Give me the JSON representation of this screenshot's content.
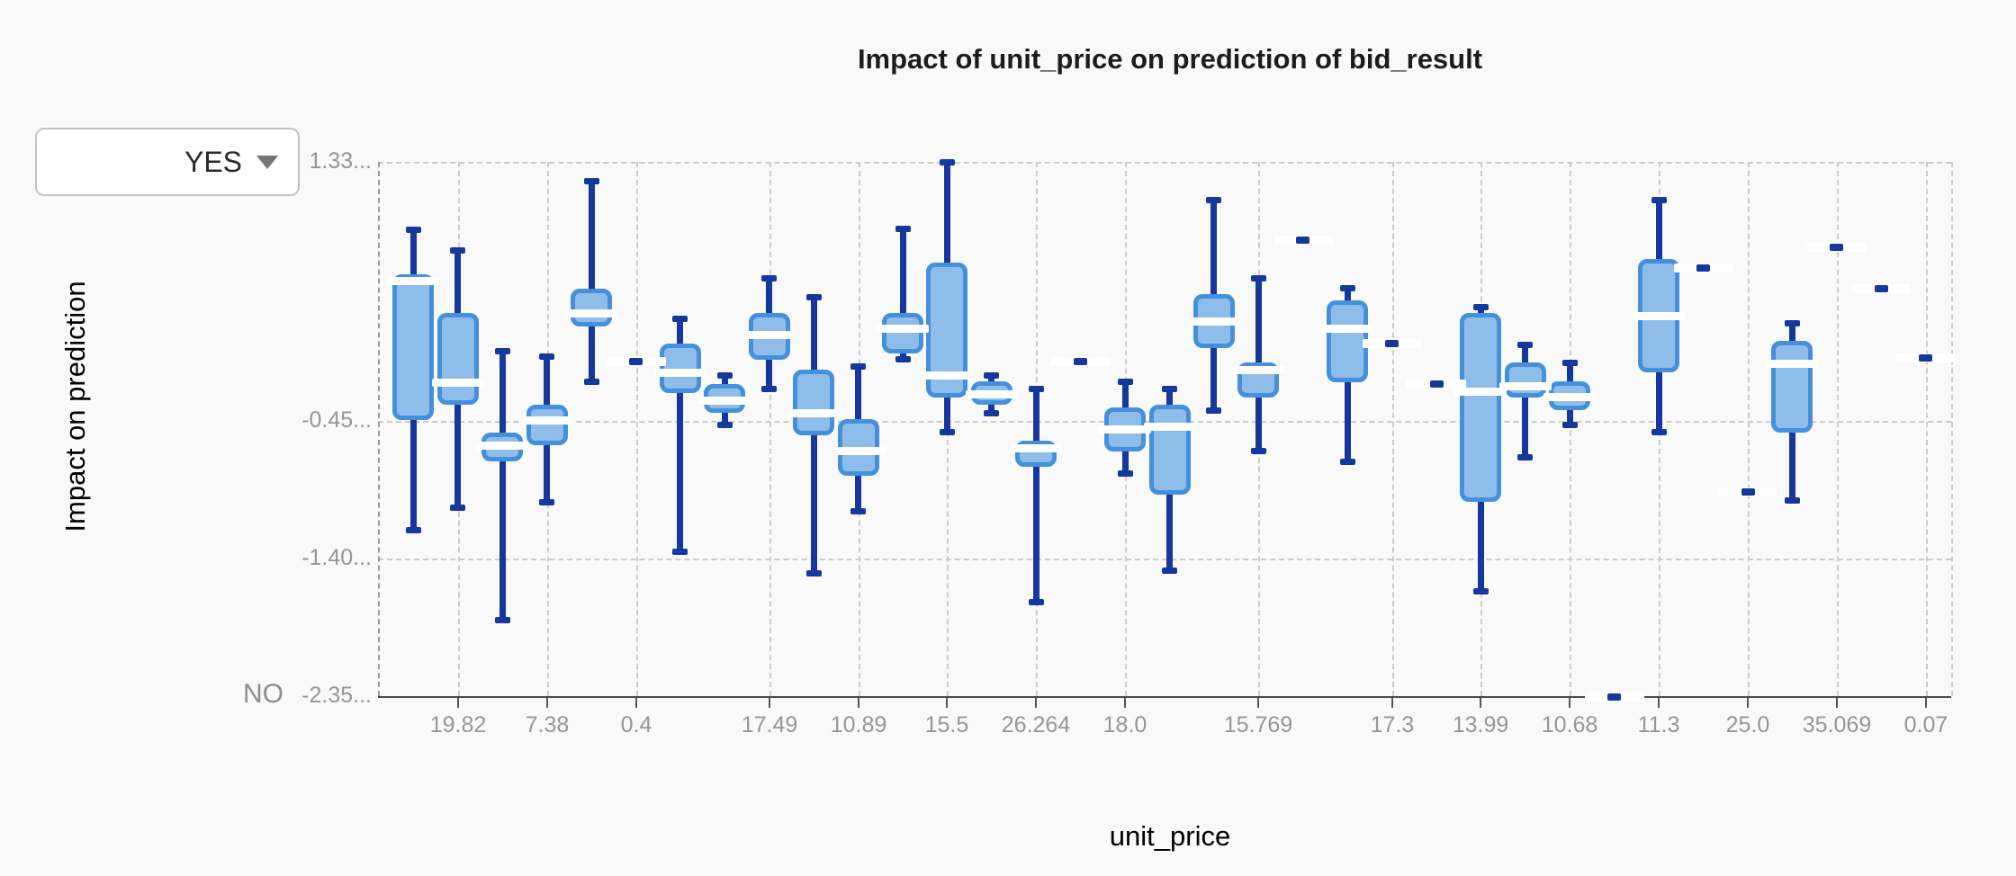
{
  "title": "Impact of unit_price on prediction of bid_result",
  "class_selector": {
    "selected_label": "YES",
    "bottom_class_label": "NO"
  },
  "y_axis": {
    "label": "Impact on prediction",
    "ticks": [
      {
        "label": "1.33...",
        "value": 1.33
      },
      {
        "label": "-0.45...",
        "value": -0.45
      },
      {
        "label": "-1.40...",
        "value": -1.4
      },
      {
        "label": "-2.35...",
        "value": -2.35
      }
    ]
  },
  "x_axis": {
    "label": "unit_price"
  },
  "colors": {
    "background": "#f9f9fa",
    "box_fill": "#8fbde9",
    "box_border": "#4590dd",
    "whisker": "#14389c",
    "median": "#ffffff",
    "grid": "#cbcbcb",
    "axis": "#4a4a4a",
    "tick_text": "#969696"
  },
  "chart_data": {
    "type": "box",
    "title": "Impact of unit_price on prediction of bid_result",
    "xlabel": "unit_price",
    "ylabel": "Impact on prediction",
    "ylim": [
      -2.35,
      1.33
    ],
    "grid": true,
    "y_tick_values": [
      1.33,
      -0.45,
      -1.4,
      -2.35
    ],
    "items": [
      {
        "kind": "box",
        "stats": {
          "lo": -1.2,
          "q1": -0.44,
          "med": 0.51,
          "q3": 0.56,
          "hi": 0.86
        }
      },
      {
        "label": "19.82",
        "kind": "box",
        "stats": {
          "lo": -1.05,
          "q1": -0.34,
          "med": -0.19,
          "q3": 0.29,
          "hi": 0.72
        }
      },
      {
        "kind": "box",
        "stats": {
          "lo": -1.82,
          "q1": -0.73,
          "med": -0.62,
          "q3": -0.53,
          "hi": 0.03
        }
      },
      {
        "label": "7.38",
        "kind": "box",
        "stats": {
          "lo": -1.01,
          "q1": -0.62,
          "med": -0.45,
          "q3": -0.34,
          "hi": -0.01
        }
      },
      {
        "kind": "box",
        "stats": {
          "lo": -0.18,
          "q1": 0.2,
          "med": 0.29,
          "q3": 0.46,
          "hi": 1.2
        }
      },
      {
        "label": "0.4",
        "kind": "dash",
        "value": -0.04
      },
      {
        "kind": "box",
        "stats": {
          "lo": -1.35,
          "q1": -0.26,
          "med": -0.12,
          "q3": 0.08,
          "hi": 0.25
        }
      },
      {
        "kind": "box",
        "stats": {
          "lo": -0.48,
          "q1": -0.4,
          "med": -0.31,
          "q3": -0.2,
          "hi": -0.14
        }
      },
      {
        "label": "17.49",
        "kind": "box",
        "stats": {
          "lo": -0.23,
          "q1": -0.03,
          "med": 0.14,
          "q3": 0.29,
          "hi": 0.53
        }
      },
      {
        "kind": "box",
        "stats": {
          "lo": -1.5,
          "q1": -0.55,
          "med": -0.4,
          "q3": -0.1,
          "hi": 0.4
        }
      },
      {
        "label": "10.89",
        "kind": "box",
        "stats": {
          "lo": -1.07,
          "q1": -0.83,
          "med": -0.66,
          "q3": -0.44,
          "hi": -0.08
        }
      },
      {
        "kind": "box",
        "stats": {
          "lo": -0.03,
          "q1": 0.01,
          "med": 0.18,
          "q3": 0.29,
          "hi": 0.87
        }
      },
      {
        "label": "15.5",
        "kind": "box",
        "stats": {
          "lo": -0.53,
          "q1": -0.29,
          "med": -0.14,
          "q3": 0.64,
          "hi": 1.33
        }
      },
      {
        "kind": "box",
        "stats": {
          "lo": -0.4,
          "q1": -0.34,
          "med": -0.27,
          "q3": -0.18,
          "hi": -0.14
        }
      },
      {
        "label": "26.264",
        "kind": "box",
        "stats": {
          "lo": -1.7,
          "q1": -0.77,
          "med": -0.64,
          "q3": -0.59,
          "hi": -0.23
        }
      },
      {
        "kind": "dash",
        "value": -0.04
      },
      {
        "label": "18.0",
        "kind": "box",
        "stats": {
          "lo": -0.81,
          "q1": -0.66,
          "med": -0.51,
          "q3": -0.36,
          "hi": -0.18
        }
      },
      {
        "kind": "box",
        "stats": {
          "lo": -1.48,
          "q1": -0.96,
          "med": -0.49,
          "q3": -0.34,
          "hi": -0.23
        }
      },
      {
        "kind": "box",
        "stats": {
          "lo": -0.38,
          "q1": 0.05,
          "med": 0.23,
          "q3": 0.42,
          "hi": 1.07
        }
      },
      {
        "label": "15.769",
        "kind": "box",
        "stats": {
          "lo": -0.66,
          "q1": -0.29,
          "med": -0.1,
          "q3": -0.05,
          "hi": 0.53
        }
      },
      {
        "kind": "dash",
        "value": 0.79
      },
      {
        "kind": "box",
        "stats": {
          "lo": -0.73,
          "q1": -0.18,
          "med": 0.18,
          "q3": 0.38,
          "hi": 0.46
        }
      },
      {
        "label": "17.3",
        "kind": "dash",
        "value": 0.08
      },
      {
        "kind": "dash",
        "value": -0.2
      },
      {
        "label": "13.99",
        "kind": "box",
        "stats": {
          "lo": -1.62,
          "q1": -1.01,
          "med": -0.25,
          "q3": 0.29,
          "hi": 0.33
        }
      },
      {
        "kind": "box",
        "stats": {
          "lo": -0.7,
          "q1": -0.29,
          "med": -0.21,
          "q3": -0.05,
          "hi": 0.07
        }
      },
      {
        "label": "10.68",
        "kind": "box",
        "stats": {
          "lo": -0.48,
          "q1": -0.38,
          "med": -0.29,
          "q3": -0.18,
          "hi": -0.05
        }
      },
      {
        "kind": "dash",
        "value": -2.35
      },
      {
        "label": "11.3",
        "kind": "box",
        "stats": {
          "lo": -0.53,
          "q1": -0.12,
          "med": 0.27,
          "q3": 0.66,
          "hi": 1.07
        }
      },
      {
        "kind": "dash",
        "value": 0.6
      },
      {
        "label": "25.0",
        "kind": "dash",
        "value": -0.94
      },
      {
        "kind": "box",
        "stats": {
          "lo": -1.0,
          "q1": -0.53,
          "med": -0.06,
          "q3": 0.1,
          "hi": 0.22
        }
      },
      {
        "label": "35.069",
        "kind": "dash",
        "value": 0.74
      },
      {
        "kind": "dash",
        "value": 0.46
      },
      {
        "label": "0.07",
        "kind": "dash",
        "value": -0.02
      }
    ]
  }
}
